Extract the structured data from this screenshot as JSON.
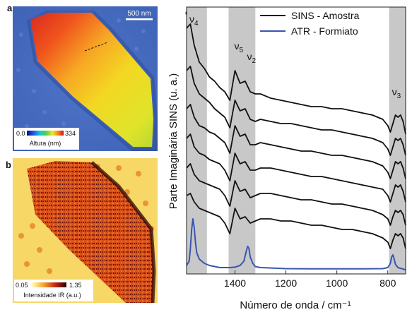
{
  "panel_labels": {
    "a": "a",
    "b": "b",
    "c": "c"
  },
  "panel_a": {
    "scale_bar_label": "500 nm",
    "colorbar": {
      "min_label": "0.0",
      "max_label": "334",
      "title": "Altura (nm)"
    }
  },
  "panel_b": {
    "colorbar": {
      "min_label": "0.05",
      "max_label": "1.35",
      "title": "Intensidade IR (a.u.)"
    }
  },
  "chart_data": {
    "type": "line",
    "title": "",
    "xlabel": "Número de onda / cm⁻¹",
    "ylabel": "Parte Imaginária SINS (u. a.)",
    "xlim": [
      1590,
      730
    ],
    "x_reversed": true,
    "x_ticks": [
      1400,
      1200,
      1000,
      800
    ],
    "legend": {
      "placement": "top-right",
      "entries": [
        {
          "name": "SINS - Amostra",
          "color": "#111111"
        },
        {
          "name": "ATR - Formiato",
          "color": "#3a55b0"
        }
      ]
    },
    "bands": [
      {
        "label_main": "ν",
        "label_sub": "4",
        "from": 1590,
        "to": 1510
      },
      {
        "label_main": "ν",
        "label_sub": "5",
        "label2_main": "ν",
        "label2_sub": "2",
        "from": 1425,
        "to": 1320
      },
      {
        "label_main": "ν",
        "label_sub": "3",
        "from": 795,
        "to": 730
      }
    ],
    "band_color": "#c8c8c8",
    "series": [
      {
        "kind": "sins",
        "offset": 0.86,
        "values": [
          [
            1590,
            0.28
          ],
          [
            1575,
            0.3
          ],
          [
            1560,
            0.2
          ],
          [
            1540,
            0.12
          ],
          [
            1520,
            0.09
          ],
          [
            1500,
            0.05
          ],
          [
            1480,
            0.03
          ],
          [
            1460,
            0.0
          ],
          [
            1440,
            -0.02
          ],
          [
            1420,
            -0.06
          ],
          [
            1400,
            0.08
          ],
          [
            1380,
            0.02
          ],
          [
            1360,
            0.03
          ],
          [
            1340,
            -0.02
          ],
          [
            1320,
            -0.03
          ],
          [
            1300,
            -0.03
          ],
          [
            1260,
            -0.05
          ],
          [
            1220,
            -0.06
          ],
          [
            1180,
            -0.07
          ],
          [
            1140,
            -0.08
          ],
          [
            1100,
            -0.09
          ],
          [
            1060,
            -0.09
          ],
          [
            1020,
            -0.1
          ],
          [
            980,
            -0.1
          ],
          [
            940,
            -0.11
          ],
          [
            900,
            -0.12
          ],
          [
            860,
            -0.13
          ],
          [
            820,
            -0.15
          ],
          [
            800,
            -0.18
          ],
          [
            790,
            -0.21
          ],
          [
            780,
            -0.17
          ],
          [
            770,
            -0.13
          ],
          [
            760,
            -0.14
          ],
          [
            750,
            -0.13
          ],
          [
            740,
            -0.16
          ],
          [
            730,
            -0.22
          ]
        ]
      },
      {
        "kind": "sins",
        "offset": 0.74,
        "values": [
          [
            1590,
            0.2
          ],
          [
            1575,
            0.22
          ],
          [
            1560,
            0.14
          ],
          [
            1540,
            0.09
          ],
          [
            1520,
            0.07
          ],
          [
            1500,
            0.05
          ],
          [
            1480,
            0.02
          ],
          [
            1460,
            0.0
          ],
          [
            1440,
            -0.02
          ],
          [
            1420,
            -0.07
          ],
          [
            1400,
            0.06
          ],
          [
            1380,
            0.01
          ],
          [
            1360,
            0.02
          ],
          [
            1340,
            -0.03
          ],
          [
            1320,
            -0.04
          ],
          [
            1300,
            -0.03
          ],
          [
            1260,
            -0.04
          ],
          [
            1220,
            -0.05
          ],
          [
            1180,
            -0.05
          ],
          [
            1140,
            -0.06
          ],
          [
            1100,
            -0.07
          ],
          [
            1060,
            -0.08
          ],
          [
            1020,
            -0.08
          ],
          [
            980,
            -0.09
          ],
          [
            940,
            -0.1
          ],
          [
            900,
            -0.11
          ],
          [
            860,
            -0.12
          ],
          [
            820,
            -0.14
          ],
          [
            800,
            -0.17
          ],
          [
            790,
            -0.2
          ],
          [
            780,
            -0.16
          ],
          [
            770,
            -0.12
          ],
          [
            760,
            -0.13
          ],
          [
            750,
            -0.12
          ],
          [
            740,
            -0.15
          ],
          [
            730,
            -0.2
          ]
        ]
      },
      {
        "kind": "sins",
        "offset": 0.62,
        "values": [
          [
            1590,
            0.14
          ],
          [
            1575,
            0.16
          ],
          [
            1560,
            0.1
          ],
          [
            1540,
            0.06
          ],
          [
            1520,
            0.05
          ],
          [
            1500,
            0.03
          ],
          [
            1480,
            0.02
          ],
          [
            1460,
            0.0
          ],
          [
            1440,
            -0.02
          ],
          [
            1420,
            -0.07
          ],
          [
            1400,
            0.06
          ],
          [
            1380,
            0.01
          ],
          [
            1360,
            0.02
          ],
          [
            1340,
            -0.03
          ],
          [
            1320,
            -0.03
          ],
          [
            1300,
            -0.02
          ],
          [
            1260,
            -0.03
          ],
          [
            1220,
            -0.04
          ],
          [
            1180,
            -0.05
          ],
          [
            1140,
            -0.06
          ],
          [
            1100,
            -0.06
          ],
          [
            1060,
            -0.07
          ],
          [
            1020,
            -0.08
          ],
          [
            980,
            -0.08
          ],
          [
            940,
            -0.09
          ],
          [
            900,
            -0.1
          ],
          [
            860,
            -0.11
          ],
          [
            820,
            -0.13
          ],
          [
            800,
            -0.16
          ],
          [
            790,
            -0.19
          ],
          [
            780,
            -0.15
          ],
          [
            770,
            -0.11
          ],
          [
            760,
            -0.12
          ],
          [
            750,
            -0.11
          ],
          [
            740,
            -0.14
          ],
          [
            730,
            -0.19
          ]
        ]
      },
      {
        "kind": "sins",
        "offset": 0.5,
        "values": [
          [
            1590,
            0.12
          ],
          [
            1575,
            0.14
          ],
          [
            1560,
            0.08
          ],
          [
            1540,
            0.05
          ],
          [
            1520,
            0.04
          ],
          [
            1500,
            0.02
          ],
          [
            1480,
            0.01
          ],
          [
            1460,
            0.0
          ],
          [
            1440,
            -0.03
          ],
          [
            1420,
            -0.08
          ],
          [
            1400,
            0.05
          ],
          [
            1380,
            0.0
          ],
          [
            1360,
            0.01
          ],
          [
            1340,
            -0.03
          ],
          [
            1320,
            -0.03
          ],
          [
            1300,
            -0.02
          ],
          [
            1260,
            -0.02
          ],
          [
            1220,
            -0.03
          ],
          [
            1180,
            -0.04
          ],
          [
            1140,
            -0.05
          ],
          [
            1100,
            -0.06
          ],
          [
            1060,
            -0.06
          ],
          [
            1020,
            -0.07
          ],
          [
            980,
            -0.08
          ],
          [
            940,
            -0.09
          ],
          [
            900,
            -0.1
          ],
          [
            860,
            -0.11
          ],
          [
            820,
            -0.12
          ],
          [
            800,
            -0.15
          ],
          [
            790,
            -0.18
          ],
          [
            780,
            -0.14
          ],
          [
            770,
            -0.1
          ],
          [
            760,
            -0.11
          ],
          [
            750,
            -0.1
          ],
          [
            740,
            -0.13
          ],
          [
            730,
            -0.18
          ]
        ]
      },
      {
        "kind": "sins",
        "offset": 0.38,
        "values": [
          [
            1590,
            0.1
          ],
          [
            1575,
            0.12
          ],
          [
            1560,
            0.07
          ],
          [
            1540,
            0.04
          ],
          [
            1520,
            0.03
          ],
          [
            1500,
            0.02
          ],
          [
            1480,
            0.01
          ],
          [
            1460,
            0.0
          ],
          [
            1440,
            -0.03
          ],
          [
            1420,
            -0.08
          ],
          [
            1400,
            0.04
          ],
          [
            1380,
            -0.01
          ],
          [
            1360,
            0.0
          ],
          [
            1340,
            -0.04
          ],
          [
            1320,
            -0.03
          ],
          [
            1300,
            -0.02
          ],
          [
            1260,
            -0.02
          ],
          [
            1220,
            -0.03
          ],
          [
            1180,
            -0.04
          ],
          [
            1140,
            -0.05
          ],
          [
            1100,
            -0.05
          ],
          [
            1060,
            -0.06
          ],
          [
            1020,
            -0.07
          ],
          [
            980,
            -0.07
          ],
          [
            940,
            -0.08
          ],
          [
            900,
            -0.09
          ],
          [
            860,
            -0.1
          ],
          [
            820,
            -0.12
          ],
          [
            800,
            -0.14
          ],
          [
            790,
            -0.17
          ],
          [
            780,
            -0.13
          ],
          [
            770,
            -0.1
          ],
          [
            760,
            -0.11
          ],
          [
            750,
            -0.1
          ],
          [
            740,
            -0.12
          ],
          [
            730,
            -0.17
          ]
        ]
      },
      {
        "kind": "sins",
        "offset": 0.26,
        "values": [
          [
            1590,
            0.09
          ],
          [
            1575,
            0.1
          ],
          [
            1560,
            0.06
          ],
          [
            1540,
            0.03
          ],
          [
            1520,
            0.02
          ],
          [
            1500,
            0.01
          ],
          [
            1480,
            0.0
          ],
          [
            1460,
            -0.01
          ],
          [
            1440,
            -0.04
          ],
          [
            1420,
            -0.09
          ],
          [
            1400,
            0.03
          ],
          [
            1380,
            -0.02
          ],
          [
            1360,
            -0.01
          ],
          [
            1340,
            -0.04
          ],
          [
            1320,
            -0.03
          ],
          [
            1300,
            -0.02
          ],
          [
            1260,
            -0.02
          ],
          [
            1220,
            -0.03
          ],
          [
            1180,
            -0.03
          ],
          [
            1140,
            -0.04
          ],
          [
            1100,
            -0.05
          ],
          [
            1060,
            -0.05
          ],
          [
            1020,
            -0.06
          ],
          [
            980,
            -0.07
          ],
          [
            940,
            -0.07
          ],
          [
            900,
            -0.08
          ],
          [
            860,
            -0.09
          ],
          [
            820,
            -0.11
          ],
          [
            800,
            -0.13
          ],
          [
            790,
            -0.16
          ],
          [
            780,
            -0.12
          ],
          [
            770,
            -0.09
          ],
          [
            760,
            -0.1
          ],
          [
            750,
            -0.09
          ],
          [
            740,
            -0.11
          ],
          [
            730,
            -0.16
          ]
        ]
      },
      {
        "kind": "atr",
        "offset": 0.0,
        "values": [
          [
            1590,
            0.02
          ],
          [
            1580,
            0.04
          ],
          [
            1575,
            0.1
          ],
          [
            1570,
            0.19
          ],
          [
            1565,
            0.24
          ],
          [
            1560,
            0.2
          ],
          [
            1555,
            0.13
          ],
          [
            1550,
            0.08
          ],
          [
            1540,
            0.05
          ],
          [
            1520,
            0.03
          ],
          [
            1500,
            0.02
          ],
          [
            1480,
            0.015
          ],
          [
            1460,
            0.01
          ],
          [
            1440,
            0.01
          ],
          [
            1420,
            0.01
          ],
          [
            1400,
            0.012
          ],
          [
            1380,
            0.02
          ],
          [
            1365,
            0.04
          ],
          [
            1355,
            0.09
          ],
          [
            1350,
            0.11
          ],
          [
            1345,
            0.1
          ],
          [
            1340,
            0.06
          ],
          [
            1330,
            0.03
          ],
          [
            1320,
            0.015
          ],
          [
            1300,
            0.01
          ],
          [
            1200,
            0.005
          ],
          [
            1100,
            0.004
          ],
          [
            1000,
            0.004
          ],
          [
            900,
            0.004
          ],
          [
            820,
            0.005
          ],
          [
            800,
            0.01
          ],
          [
            790,
            0.03
          ],
          [
            785,
            0.06
          ],
          [
            780,
            0.07
          ],
          [
            775,
            0.05
          ],
          [
            770,
            0.025
          ],
          [
            760,
            0.01
          ],
          [
            740,
            0.003
          ],
          [
            730,
            0.0
          ]
        ]
      }
    ]
  }
}
